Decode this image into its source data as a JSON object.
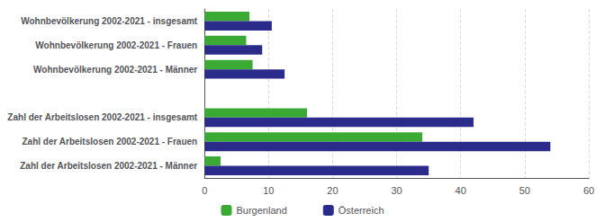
{
  "chart_data": {
    "type": "bar",
    "orientation": "horizontal",
    "categories": [
      "Wohnbevölkerung 2002-2021 - insgesamt",
      "Wohnbevölkerung 2002-2021 - Frauen",
      "Wohnbevölkerung 2002-2021 - Männer",
      null,
      "Zahl der Arbeitslosen 2002-2021 - insgesamt",
      "Zahl der Arbeitslosen 2002-2021 - Frauen",
      "Zahl der Arbeitslosen 2002-2021 - Männer"
    ],
    "series": [
      {
        "name": "Burgenland",
        "color": "#3aaa35",
        "values": [
          7.0,
          6.5,
          7.5,
          0,
          16.0,
          34.0,
          2.5
        ]
      },
      {
        "name": "Österreich",
        "color": "#2b2b8c",
        "values": [
          10.5,
          9.0,
          12.5,
          0,
          42.0,
          54.0,
          35.0
        ]
      }
    ],
    "xlim": [
      0,
      60
    ],
    "xticks": [
      0,
      10,
      20,
      30,
      40,
      50,
      60
    ],
    "grid": true,
    "legend": "bottom"
  }
}
